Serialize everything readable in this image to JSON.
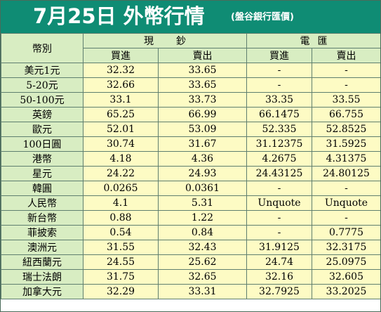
{
  "title": {
    "main": "7月25日 外幣行情",
    "sub": "(盤谷銀行匯價)"
  },
  "header": {
    "currency": "幣別",
    "cash": [
      "現",
      "鈔"
    ],
    "wire": [
      "電",
      "匯"
    ],
    "buy": "買進",
    "sell": "賣出"
  },
  "rows": [
    {
      "currency": "美元1元",
      "cash_buy": "32.32",
      "cash_sell": "33.65",
      "wire_buy": "-",
      "wire_sell": "-"
    },
    {
      "currency": "5-20元",
      "cash_buy": "32.66",
      "cash_sell": "33.65",
      "wire_buy": "-",
      "wire_sell": "-"
    },
    {
      "currency": "50-100元",
      "cash_buy": "33.1",
      "cash_sell": "33.73",
      "wire_buy": "33.35",
      "wire_sell": "33.55"
    },
    {
      "currency": "英鎊",
      "cash_buy": "65.25",
      "cash_sell": "66.99",
      "wire_buy": "66.1475",
      "wire_sell": "66.755"
    },
    {
      "currency": "歐元",
      "cash_buy": "52.01",
      "cash_sell": "53.09",
      "wire_buy": "52.335",
      "wire_sell": "52.8525"
    },
    {
      "currency": "100日圓",
      "cash_buy": "30.74",
      "cash_sell": "31.67",
      "wire_buy": "31.12375",
      "wire_sell": "31.5925"
    },
    {
      "currency": "港幣",
      "cash_buy": "4.18",
      "cash_sell": "4.36",
      "wire_buy": "4.2675",
      "wire_sell": "4.31375"
    },
    {
      "currency": "星元",
      "cash_buy": "24.22",
      "cash_sell": "24.93",
      "wire_buy": "24.43125",
      "wire_sell": "24.80125"
    },
    {
      "currency": "韓圓",
      "cash_buy": "0.0265",
      "cash_sell": "0.0361",
      "wire_buy": "-",
      "wire_sell": "-"
    },
    {
      "currency": "人民幣",
      "cash_buy": "4.1",
      "cash_sell": "5.31",
      "wire_buy": "Unquote",
      "wire_sell": "Unquote"
    },
    {
      "currency": "新台幣",
      "cash_buy": "0.88",
      "cash_sell": "1.22",
      "wire_buy": "-",
      "wire_sell": "-"
    },
    {
      "currency": "菲披索",
      "cash_buy": "0.54",
      "cash_sell": "0.84",
      "wire_buy": "-",
      "wire_sell": "0.7775"
    },
    {
      "currency": "澳洲元",
      "cash_buy": "31.55",
      "cash_sell": "32.43",
      "wire_buy": "31.9125",
      "wire_sell": "32.3175"
    },
    {
      "currency": "紐西蘭元",
      "cash_buy": "24.55",
      "cash_sell": "25.62",
      "wire_buy": "24.74",
      "wire_sell": "25.0975"
    },
    {
      "currency": "瑞士法朗",
      "cash_buy": "31.75",
      "cash_sell": "32.65",
      "wire_buy": "32.16",
      "wire_sell": "32.605"
    },
    {
      "currency": "加拿大元",
      "cash_buy": "32.29",
      "cash_sell": "33.31",
      "wire_buy": "32.7925",
      "wire_sell": "33.2025"
    }
  ],
  "colors": {
    "title_bg": "#0f8c74",
    "header_bg": "#d8edc2",
    "cell_bg": "#fdfbc4",
    "border": "#5f7f6f"
  }
}
